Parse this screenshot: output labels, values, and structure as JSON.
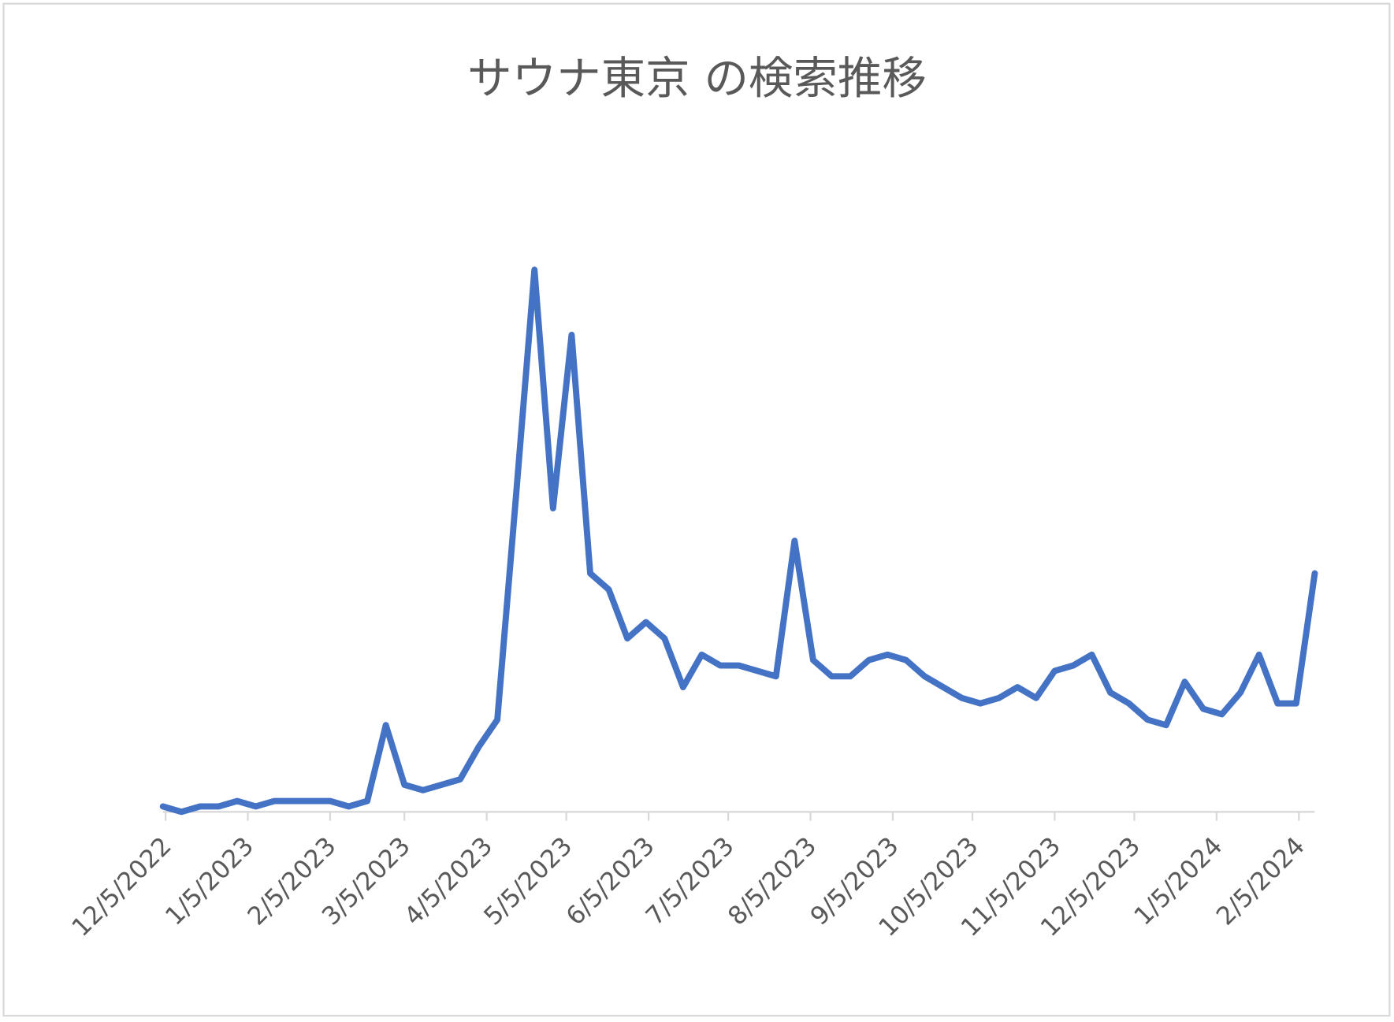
{
  "chart_data": {
    "type": "line",
    "title": "サウナ東京 の検索推移",
    "x": [
      "2022-12-04",
      "2022-12-11",
      "2022-12-18",
      "2022-12-25",
      "2023-01-01",
      "2023-01-08",
      "2023-01-15",
      "2023-01-22",
      "2023-01-29",
      "2023-02-05",
      "2023-02-12",
      "2023-02-19",
      "2023-02-26",
      "2023-03-05",
      "2023-03-12",
      "2023-03-19",
      "2023-03-26",
      "2023-04-02",
      "2023-04-09",
      "2023-04-16",
      "2023-04-23",
      "2023-04-30",
      "2023-05-07",
      "2023-05-14",
      "2023-05-21",
      "2023-05-28",
      "2023-06-04",
      "2023-06-11",
      "2023-06-18",
      "2023-06-25",
      "2023-07-02",
      "2023-07-09",
      "2023-07-16",
      "2023-07-23",
      "2023-07-30",
      "2023-08-06",
      "2023-08-13",
      "2023-08-20",
      "2023-08-27",
      "2023-09-03",
      "2023-09-10",
      "2023-09-17",
      "2023-09-24",
      "2023-10-01",
      "2023-10-08",
      "2023-10-15",
      "2023-10-22",
      "2023-10-29",
      "2023-11-05",
      "2023-11-12",
      "2023-11-19",
      "2023-11-26",
      "2023-12-03",
      "2023-12-10",
      "2023-12-17",
      "2023-12-24",
      "2023-12-31",
      "2024-01-07",
      "2024-01-14",
      "2024-01-21",
      "2024-01-28",
      "2024-02-04",
      "2024-02-11"
    ],
    "series": [
      {
        "name": "サウナ東京",
        "color": "#4472c4",
        "values": [
          1,
          0,
          1,
          1,
          2,
          1,
          2,
          2,
          2,
          2,
          1,
          2,
          16,
          5,
          4,
          5,
          6,
          12,
          17,
          58,
          100,
          56,
          88,
          44,
          41,
          32,
          35,
          32,
          23,
          29,
          27,
          27,
          26,
          25,
          50,
          28,
          25,
          25,
          28,
          29,
          28,
          25,
          23,
          21,
          20,
          21,
          23,
          21,
          26,
          27,
          29,
          22,
          20,
          17,
          16,
          24,
          19,
          18,
          22,
          29,
          20,
          20,
          44
        ]
      }
    ],
    "xlim": [
      "2022-12-04",
      "2024-02-11"
    ],
    "xticks": [
      {
        "value": "2022-12-05",
        "label": "12/5/2022"
      },
      {
        "value": "2023-01-05",
        "label": "1/5/2023"
      },
      {
        "value": "2023-02-05",
        "label": "2/5/2023"
      },
      {
        "value": "2023-03-05",
        "label": "3/5/2023"
      },
      {
        "value": "2023-04-05",
        "label": "4/5/2023"
      },
      {
        "value": "2023-05-05",
        "label": "5/5/2023"
      },
      {
        "value": "2023-06-05",
        "label": "6/5/2023"
      },
      {
        "value": "2023-07-05",
        "label": "7/5/2023"
      },
      {
        "value": "2023-08-05",
        "label": "8/5/2023"
      },
      {
        "value": "2023-09-05",
        "label": "9/5/2023"
      },
      {
        "value": "2023-10-05",
        "label": "10/5/2023"
      },
      {
        "value": "2023-11-05",
        "label": "11/5/2023"
      },
      {
        "value": "2023-12-05",
        "label": "12/5/2023"
      },
      {
        "value": "2024-01-05",
        "label": "1/5/2024"
      },
      {
        "value": "2024-02-05",
        "label": "2/5/2024"
      }
    ],
    "ylim": [
      0,
      100
    ]
  }
}
